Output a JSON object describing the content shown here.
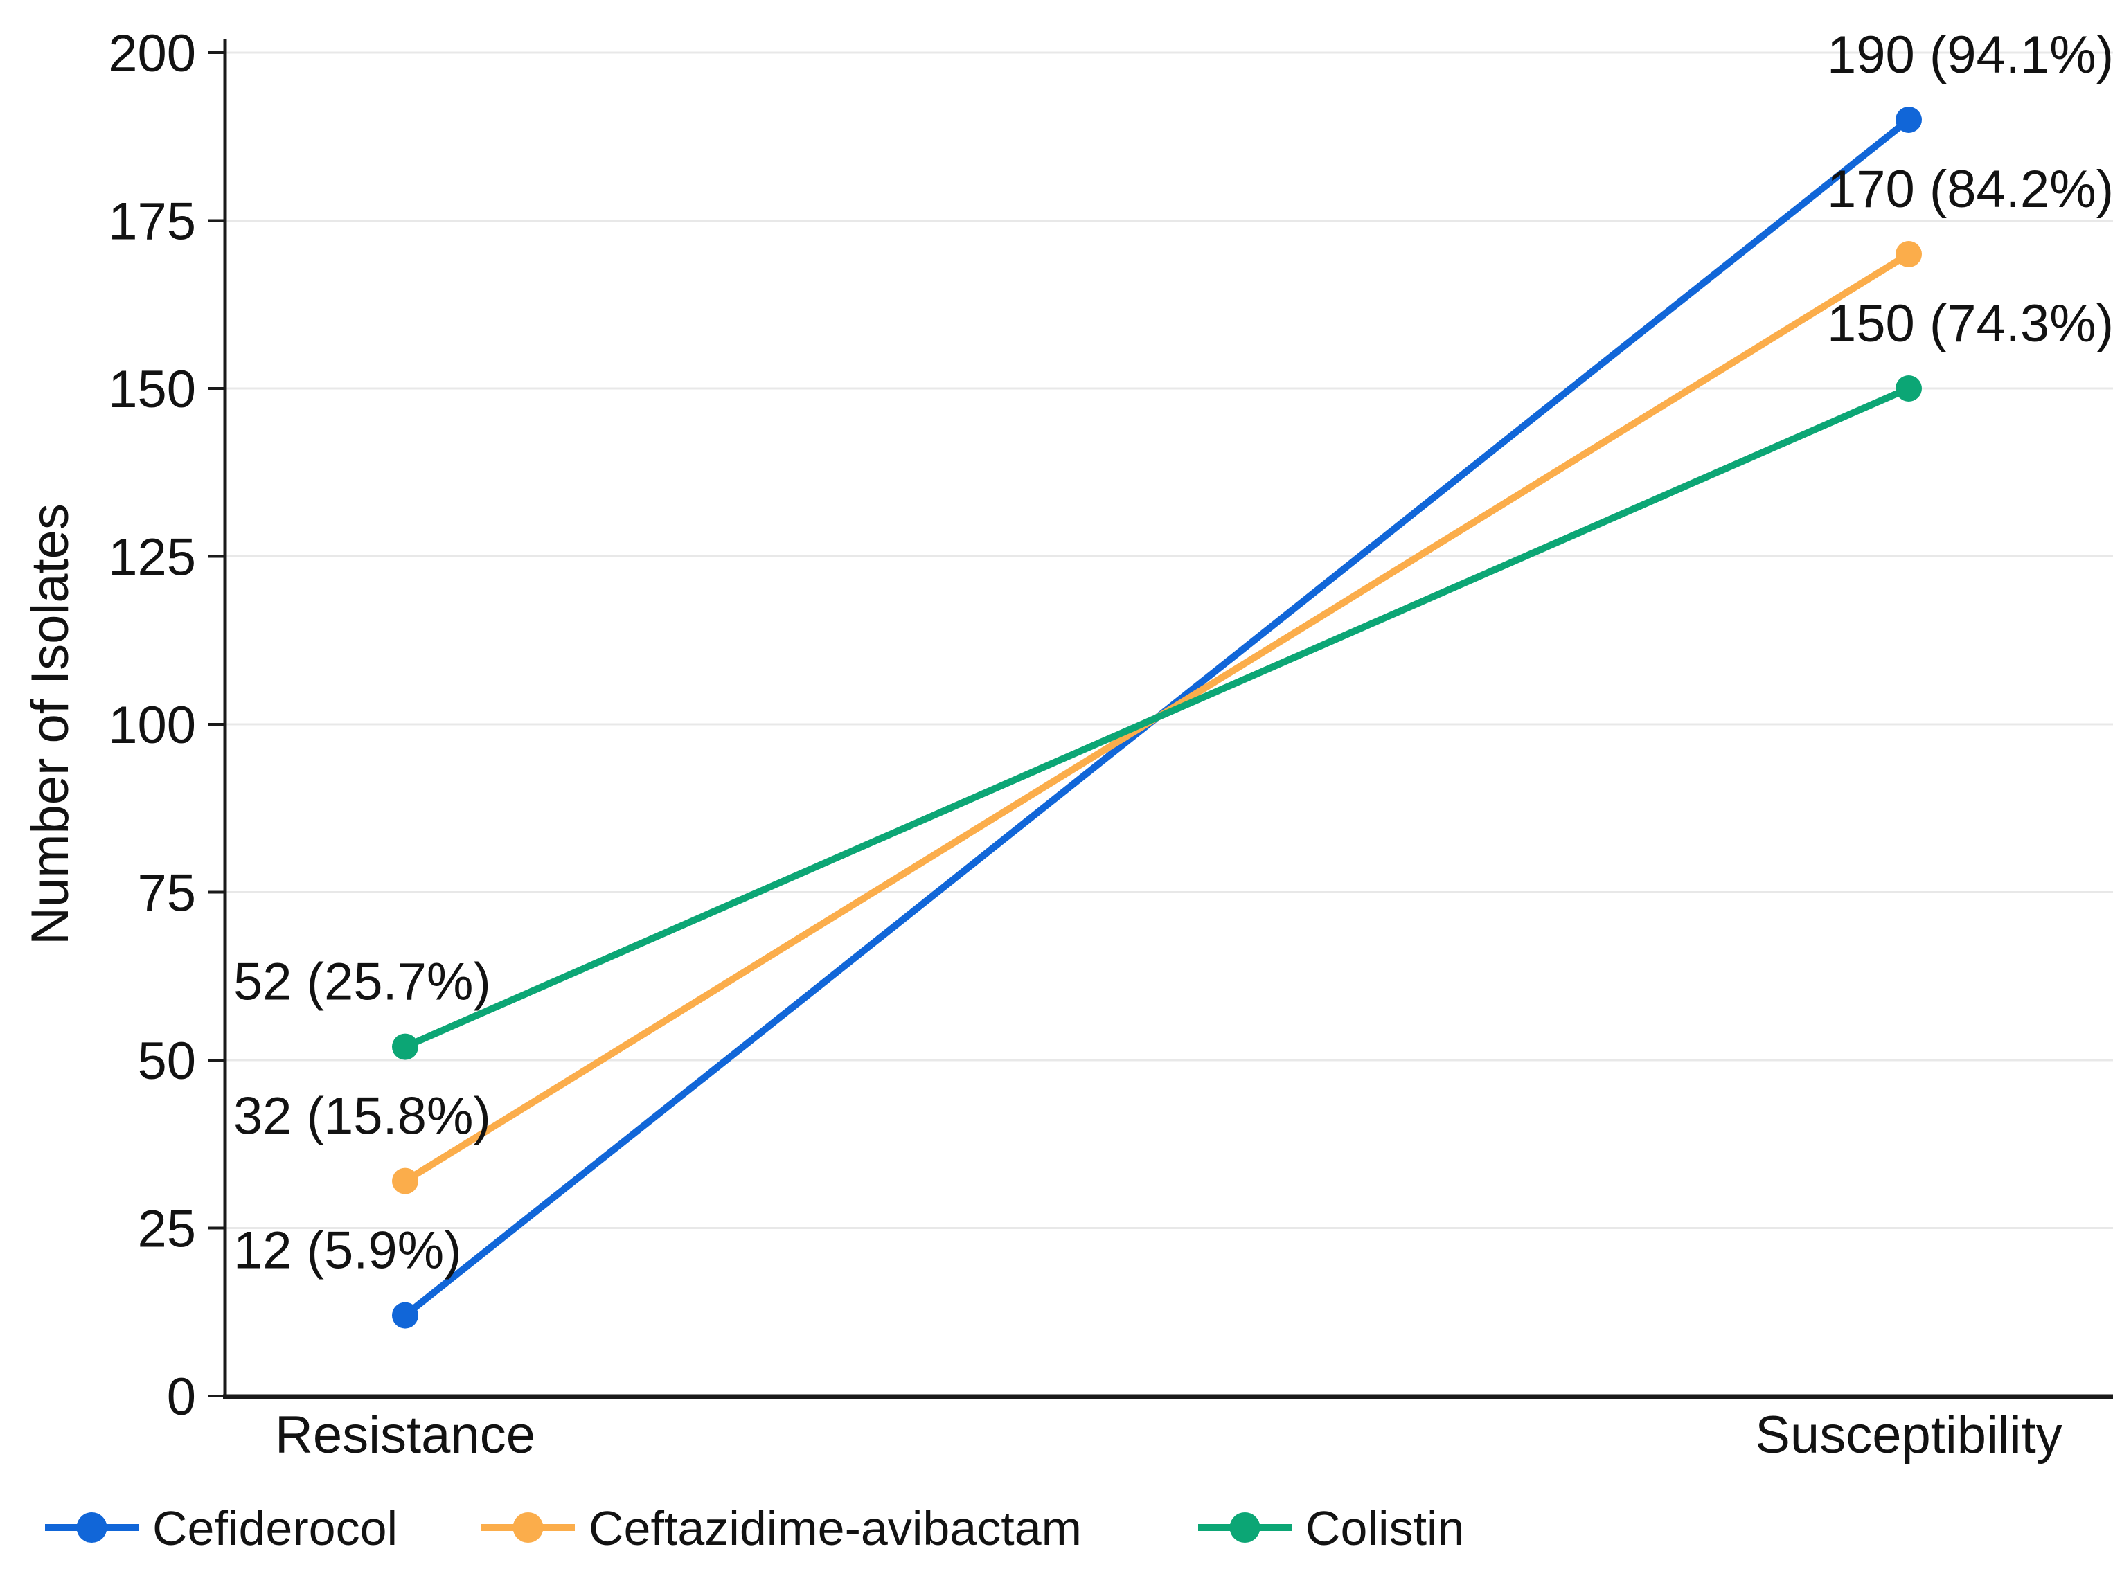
{
  "chart_data": {
    "type": "line",
    "variant": "slope",
    "title": "",
    "xlabel": "",
    "ylabel": "Number of Isolates",
    "categories": [
      "Resistance",
      "Susceptibility"
    ],
    "series": [
      {
        "name": "Cefiderocol",
        "color": "#1166d8",
        "values": [
          12,
          190
        ],
        "point_labels": [
          "12 (5.9%)",
          "190 (94.1%)"
        ]
      },
      {
        "name": "Ceftazidime-avibactam",
        "color": "#fbad4b",
        "values": [
          32,
          170
        ],
        "point_labels": [
          "32 (15.8%)",
          "170 (84.2%)"
        ]
      },
      {
        "name": "Colistin",
        "color": "#0ca675",
        "values": [
          52,
          150
        ],
        "point_labels": [
          "52 (25.7%)",
          "150 (74.3%)"
        ]
      }
    ],
    "ylim": [
      0,
      200
    ],
    "yticks": [
      0,
      25,
      50,
      75,
      100,
      125,
      150,
      175,
      200
    ],
    "grid": true,
    "legend_position": "bottom",
    "colors": {
      "grid": "#e8e8e8",
      "axis": "#1a1a1a",
      "text": "#121212",
      "background": "#ffffff"
    }
  }
}
